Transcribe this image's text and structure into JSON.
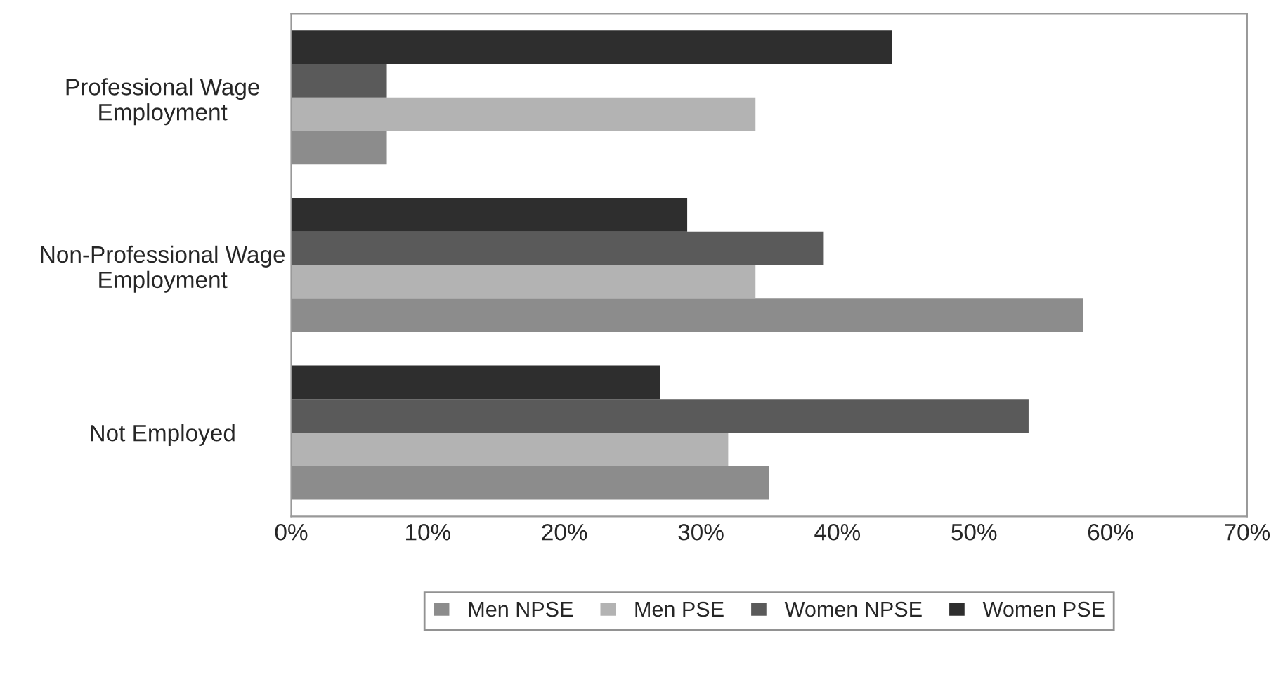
{
  "chart_data": {
    "type": "bar",
    "orientation": "horizontal",
    "categories": [
      "Professional Wage Employment",
      "Non-Professional Wage Employment",
      "Not Employed"
    ],
    "series": [
      {
        "name": "Men NPSE",
        "color": "#8c8c8c",
        "values": [
          7,
          58,
          35
        ]
      },
      {
        "name": "Men PSE",
        "color": "#b3b3b3",
        "values": [
          34,
          34,
          32
        ]
      },
      {
        "name": "Women NPSE",
        "color": "#5a5a5a",
        "values": [
          7,
          39,
          54
        ]
      },
      {
        "name": "Women PSE",
        "color": "#2e2e2e",
        "values": [
          44,
          29,
          27
        ]
      }
    ],
    "xlim": [
      0,
      70
    ],
    "xticks": [
      {
        "value": 0,
        "label": "0%"
      },
      {
        "value": 10,
        "label": "10%"
      },
      {
        "value": 20,
        "label": "20%"
      },
      {
        "value": 30,
        "label": "30%"
      },
      {
        "value": 40,
        "label": "40%"
      },
      {
        "value": 50,
        "label": "50%"
      },
      {
        "value": 60,
        "label": "60%"
      },
      {
        "value": 70,
        "label": "70%"
      }
    ],
    "grid": false,
    "legend": "bottom"
  }
}
